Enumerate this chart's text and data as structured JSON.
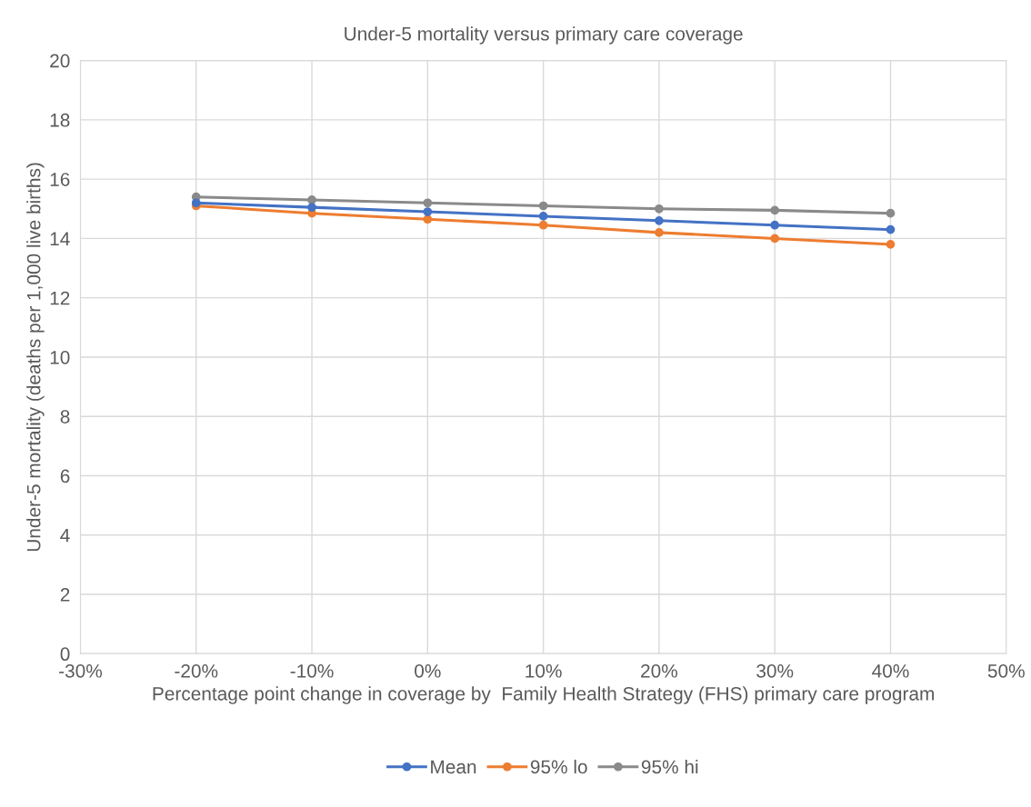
{
  "chart_data": {
    "type": "line",
    "title": "Under-5 mortality versus primary care coverage",
    "xlabel": "Percentage point change in coverage by  Family Health Strategy (FHS) primary care program",
    "ylabel": "Under-5 mortality (deaths per 1,000 live births)",
    "x": [
      -20,
      -10,
      0,
      10,
      20,
      30,
      40
    ],
    "series": [
      {
        "name": "Mean",
        "color": "#4472c4",
        "values": [
          15.2,
          15.05,
          14.9,
          14.75,
          14.6,
          14.45,
          14.3
        ]
      },
      {
        "name": "95% lo",
        "color": "#ed7d31",
        "values": [
          15.1,
          14.85,
          14.65,
          14.45,
          14.2,
          14.0,
          13.8
        ]
      },
      {
        "name": "95% hi",
        "color": "#8a8a8a",
        "values": [
          15.4,
          15.3,
          15.2,
          15.1,
          15.0,
          14.95,
          14.85
        ]
      }
    ],
    "xlim": [
      -30,
      50
    ],
    "xticks": [
      {
        "value": -30,
        "label": "-30%"
      },
      {
        "value": -20,
        "label": "-20%"
      },
      {
        "value": -10,
        "label": "-10%"
      },
      {
        "value": 0,
        "label": "0%"
      },
      {
        "value": 10,
        "label": "10%"
      },
      {
        "value": 20,
        "label": "20%"
      },
      {
        "value": 30,
        "label": "30%"
      },
      {
        "value": 40,
        "label": "40%"
      },
      {
        "value": 50,
        "label": "50%"
      }
    ],
    "ylim": [
      0,
      20
    ],
    "yticks": [
      0,
      2,
      4,
      6,
      8,
      10,
      12,
      14,
      16,
      18,
      20
    ],
    "grid": true,
    "legend": "bottom",
    "marker": "circle",
    "line_style": "solid"
  }
}
